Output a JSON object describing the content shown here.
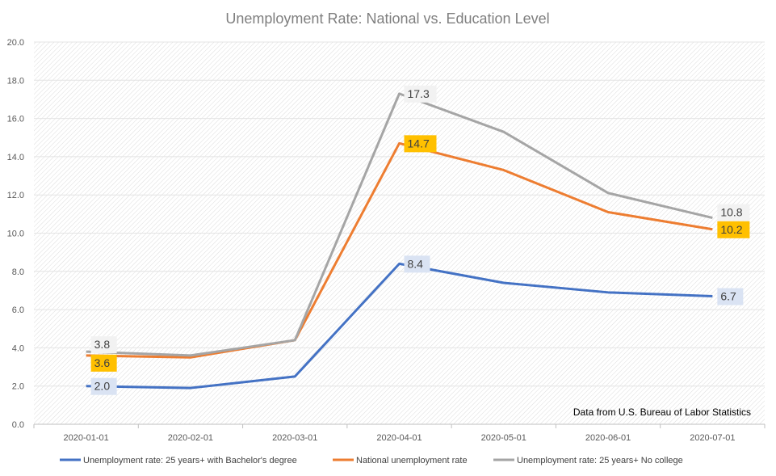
{
  "chart_data": {
    "type": "line",
    "title": "Unemployment Rate: National vs. Education Level",
    "xlabel": "",
    "ylabel": "",
    "categories": [
      "2020-01-01",
      "2020-02-01",
      "2020-03-01",
      "2020-04-01",
      "2020-05-01",
      "2020-06-01",
      "2020-07-01"
    ],
    "ylim": [
      0,
      20
    ],
    "yticks": [
      "0.0",
      "2.0",
      "4.0",
      "6.0",
      "8.0",
      "10.0",
      "12.0",
      "14.0",
      "16.0",
      "18.0",
      "20.0"
    ],
    "grid": true,
    "legend_position": "bottom",
    "annotation": "Data from U.S. Bureau of Labor Statistics",
    "series": [
      {
        "name": "Unemployment rate: 25 years+ with Bachelor's degree",
        "color": "#4472c4",
        "label_bg": "#dae3f3",
        "values": [
          2.0,
          1.9,
          2.5,
          8.4,
          7.4,
          6.9,
          6.7
        ],
        "data_labels": {
          "0": "2.0",
          "3": "8.4",
          "6": "6.7"
        }
      },
      {
        "name": "National unemployment rate",
        "color": "#ed7d31",
        "label_bg": "#ffc000",
        "values": [
          3.6,
          3.5,
          4.4,
          14.7,
          13.3,
          11.1,
          10.2
        ],
        "data_labels": {
          "0": "3.6",
          "3": "14.7",
          "6": "10.2"
        }
      },
      {
        "name": "Unemployment rate: 25 years+ No college",
        "color": "#a5a5a5",
        "label_bg": "#f2f2f2",
        "values": [
          3.8,
          3.6,
          4.4,
          17.3,
          15.3,
          12.1,
          10.8
        ],
        "data_labels": {
          "0": "3.8",
          "3": "17.3",
          "6": "10.8"
        }
      }
    ]
  }
}
